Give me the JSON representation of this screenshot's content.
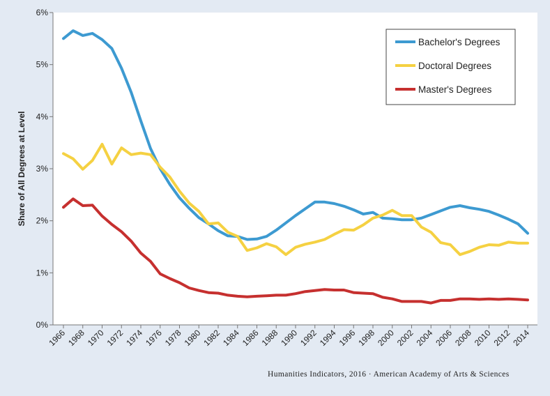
{
  "chart_data": {
    "type": "line",
    "title": "",
    "xlabel": "",
    "ylabel": "Share of All Degrees at Level",
    "ylim": [
      0,
      6
    ],
    "yticks": [
      "0%",
      "1%",
      "2%",
      "3%",
      "4%",
      "5%",
      "6%"
    ],
    "xlim": [
      1966,
      2014
    ],
    "xticks": [
      "1966",
      "1968",
      "1970",
      "1972",
      "1974",
      "1976",
      "1978",
      "1980",
      "1982",
      "1984",
      "1986",
      "1988",
      "1990",
      "1992",
      "1994",
      "1996",
      "1998",
      "2000",
      "2002",
      "2004",
      "2006",
      "2008",
      "2010",
      "2012",
      "2014"
    ],
    "grid": false,
    "legend_position": "top-right",
    "x": [
      1966,
      1967,
      1968,
      1969,
      1970,
      1971,
      1972,
      1973,
      1974,
      1975,
      1976,
      1977,
      1978,
      1979,
      1980,
      1981,
      1982,
      1983,
      1984,
      1985,
      1986,
      1987,
      1988,
      1989,
      1990,
      1991,
      1992,
      1993,
      1994,
      1995,
      1996,
      1997,
      1998,
      1999,
      2000,
      2001,
      2002,
      2003,
      2004,
      2005,
      2006,
      2007,
      2008,
      2009,
      2010,
      2011,
      2012,
      2013,
      2014
    ],
    "series": [
      {
        "name": "Bachelor's Degrees",
        "color": "#3d9ad1",
        "values": [
          5.5,
          5.65,
          5.56,
          5.6,
          5.48,
          5.31,
          4.93,
          4.47,
          3.92,
          3.39,
          3.0,
          2.7,
          2.44,
          2.24,
          2.06,
          1.94,
          1.81,
          1.71,
          1.7,
          1.64,
          1.65,
          1.7,
          1.82,
          1.96,
          2.1,
          2.23,
          2.36,
          2.36,
          2.33,
          2.28,
          2.21,
          2.13,
          2.16,
          2.05,
          2.04,
          2.02,
          2.02,
          2.05,
          2.12,
          2.19,
          2.26,
          2.29,
          2.25,
          2.22,
          2.18,
          2.11,
          2.03,
          1.94,
          1.76
        ]
      },
      {
        "name": "Doctoral Degrees",
        "color": "#f5d142",
        "values": [
          3.29,
          3.19,
          2.99,
          3.16,
          3.47,
          3.09,
          3.4,
          3.27,
          3.3,
          3.27,
          3.03,
          2.84,
          2.57,
          2.34,
          2.18,
          1.94,
          1.96,
          1.78,
          1.7,
          1.43,
          1.48,
          1.56,
          1.5,
          1.35,
          1.49,
          1.55,
          1.59,
          1.64,
          1.74,
          1.83,
          1.82,
          1.92,
          2.05,
          2.11,
          2.2,
          2.1,
          2.1,
          1.88,
          1.78,
          1.58,
          1.54,
          1.35,
          1.41,
          1.49,
          1.54,
          1.53,
          1.59,
          1.57,
          1.57
        ]
      },
      {
        "name": "Master's Degrees",
        "color": "#c6302f",
        "values": [
          2.26,
          2.42,
          2.29,
          2.3,
          2.09,
          1.93,
          1.79,
          1.61,
          1.38,
          1.22,
          0.98,
          0.89,
          0.81,
          0.71,
          0.66,
          0.62,
          0.61,
          0.57,
          0.55,
          0.54,
          0.55,
          0.56,
          0.57,
          0.57,
          0.6,
          0.64,
          0.66,
          0.68,
          0.67,
          0.67,
          0.62,
          0.61,
          0.6,
          0.53,
          0.5,
          0.45,
          0.45,
          0.45,
          0.42,
          0.47,
          0.47,
          0.5,
          0.5,
          0.49,
          0.5,
          0.49,
          0.5,
          0.49,
          0.48
        ]
      }
    ]
  },
  "credit": "Humanities Indicators, 2016 · American Academy of Arts & Sciences"
}
